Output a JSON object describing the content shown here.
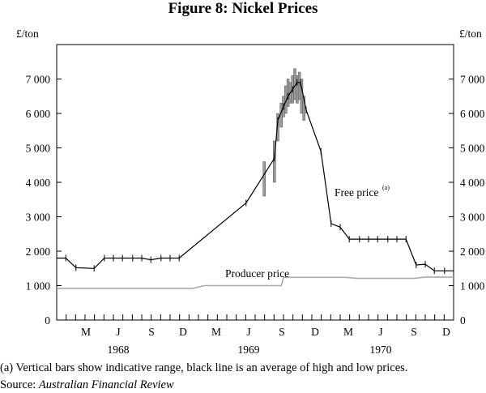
{
  "title": "Figure 8: Nickel Prices",
  "chart_data": {
    "type": "line",
    "ylabel_left": "£/ton",
    "ylabel_right": "£/ton",
    "ylim": [
      0,
      8000
    ],
    "yticks": [
      0,
      1000,
      2000,
      3000,
      4000,
      5000,
      6000,
      7000
    ],
    "ytick_labels": [
      "0",
      "1 000",
      "2 000",
      "3 000",
      "4 000",
      "5 000",
      "6 000",
      "7 000"
    ],
    "month_labels": [
      "M",
      "J",
      "S",
      "D",
      "M",
      "J",
      "S",
      "D",
      "M",
      "J",
      "S",
      "D"
    ],
    "year_labels": [
      "1968",
      "1969",
      "1970"
    ],
    "grid": false,
    "series": [
      {
        "name": "Free price",
        "name_superscript": "(a)",
        "color": "#000000",
        "points": [
          [
            1968.0,
            1800
          ],
          [
            1968.08,
            1800
          ],
          [
            1968.17,
            1520
          ],
          [
            1968.33,
            1500
          ],
          [
            1968.42,
            1800
          ],
          [
            1968.5,
            1800
          ],
          [
            1968.58,
            1800
          ],
          [
            1968.67,
            1800
          ],
          [
            1968.75,
            1800
          ],
          [
            1968.83,
            1750
          ],
          [
            1968.92,
            1800
          ],
          [
            1969.0,
            1800
          ],
          [
            1969.08,
            1800
          ],
          [
            1969.67,
            3400
          ],
          [
            1969.92,
            4700
          ],
          [
            1969.95,
            5800
          ],
          [
            1970.0,
            6200
          ],
          [
            1970.04,
            6500
          ],
          [
            1970.08,
            6700
          ],
          [
            1970.12,
            6900
          ],
          [
            1970.15,
            6900
          ],
          [
            1970.2,
            6100
          ],
          [
            1970.33,
            4900
          ],
          [
            1970.42,
            2800
          ],
          [
            1970.5,
            2700
          ],
          [
            1970.58,
            2350
          ],
          [
            1970.67,
            2350
          ],
          [
            1970.75,
            2350
          ],
          [
            1970.83,
            2350
          ],
          [
            1970.92,
            2350
          ],
          [
            1971.0,
            2350
          ],
          [
            1971.08,
            2350
          ],
          [
            1971.17,
            1600
          ],
          [
            1971.25,
            1620
          ],
          [
            1971.33,
            1430
          ],
          [
            1971.42,
            1430
          ],
          [
            1971.5,
            1430
          ]
        ]
      },
      {
        "name": "Producer price",
        "color": "#aaaaaa",
        "points": [
          [
            1968.0,
            920
          ],
          [
            1969.2,
            920
          ],
          [
            1969.3,
            1000
          ],
          [
            1969.98,
            1000
          ],
          [
            1970.0,
            1240
          ],
          [
            1970.55,
            1240
          ],
          [
            1970.65,
            1210
          ],
          [
            1971.0,
            1210
          ],
          [
            1971.15,
            1210
          ],
          [
            1971.25,
            1250
          ],
          [
            1971.5,
            1250
          ]
        ]
      }
    ],
    "range_bars": [
      [
        1969.83,
        3600,
        4600
      ],
      [
        1969.92,
        4000,
        5200
      ],
      [
        1969.95,
        5200,
        6000
      ],
      [
        1969.98,
        5600,
        6300
      ],
      [
        1970.0,
        5900,
        6500
      ],
      [
        1970.02,
        6000,
        6800
      ],
      [
        1970.04,
        6200,
        7000
      ],
      [
        1970.06,
        6300,
        6900
      ],
      [
        1970.08,
        6300,
        7100
      ],
      [
        1970.1,
        6400,
        7300
      ],
      [
        1970.12,
        6300,
        7100
      ],
      [
        1970.14,
        6400,
        7200
      ],
      [
        1970.16,
        6000,
        7000
      ],
      [
        1970.18,
        5800,
        6500
      ]
    ]
  },
  "footnote": "(a) Vertical bars show indicative range, black line is an average of high and low prices.",
  "source": {
    "prefix": "Source: ",
    "name": "Australian Financial Review"
  }
}
